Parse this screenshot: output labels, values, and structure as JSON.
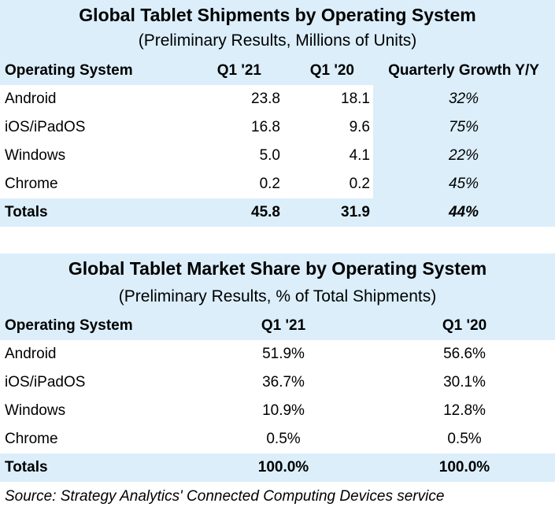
{
  "shipments": {
    "title": "Global Tablet Shipments by Operating System",
    "subtitle": "(Preliminary Results, Millions of Units)",
    "headers": [
      "Operating System",
      "Q1 '21",
      "Q1 '20",
      "Quarterly Growth Y/Y"
    ],
    "rows": [
      [
        "Android",
        "23.8",
        "18.1",
        "32%"
      ],
      [
        "iOS/iPadOS",
        "16.8",
        "9.6",
        "75%"
      ],
      [
        "Windows",
        "5.0",
        "4.1",
        "22%"
      ],
      [
        "Chrome",
        "0.2",
        "0.2",
        "45%"
      ]
    ],
    "totals": [
      "Totals",
      "45.8",
      "31.9",
      "44%"
    ]
  },
  "share": {
    "title": "Global Tablet Market Share by Operating System",
    "subtitle": "(Preliminary Results, % of Total Shipments)",
    "headers": [
      "Operating System",
      "Q1 '21",
      "Q1 '20"
    ],
    "rows": [
      [
        "Android",
        "51.9%",
        "56.6%"
      ],
      [
        "iOS/iPadOS",
        "36.7%",
        "30.1%"
      ],
      [
        "Windows",
        "10.9%",
        "12.8%"
      ],
      [
        "Chrome",
        "0.5%",
        "0.5%"
      ]
    ],
    "totals": [
      "Totals",
      "100.0%",
      "100.0%"
    ]
  },
  "source": "Source: Strategy Analytics' Connected Computing Devices service",
  "colors": {
    "shade": "#dbeefa",
    "white": "#ffffff"
  },
  "chart_data": [
    {
      "type": "table",
      "title": "Global Tablet Shipments by Operating System",
      "subtitle": "(Preliminary Results, Millions of Units)",
      "columns": [
        "Operating System",
        "Q1 '21",
        "Q1 '20",
        "Quarterly Growth Y/Y"
      ],
      "categories": [
        "Android",
        "iOS/iPadOS",
        "Windows",
        "Chrome",
        "Totals"
      ],
      "series": [
        {
          "name": "Q1 '21",
          "values": [
            23.8,
            16.8,
            5.0,
            0.2,
            45.8
          ]
        },
        {
          "name": "Q1 '20",
          "values": [
            18.1,
            9.6,
            4.1,
            0.2,
            31.9
          ]
        },
        {
          "name": "Quarterly Growth Y/Y",
          "values": [
            32,
            75,
            22,
            45,
            44
          ]
        }
      ]
    },
    {
      "type": "table",
      "title": "Global Tablet Market Share by Operating System",
      "subtitle": "(Preliminary Results, % of Total Shipments)",
      "columns": [
        "Operating System",
        "Q1 '21",
        "Q1 '20"
      ],
      "categories": [
        "Android",
        "iOS/iPadOS",
        "Windows",
        "Chrome",
        "Totals"
      ],
      "series": [
        {
          "name": "Q1 '21",
          "values": [
            51.9,
            36.7,
            10.9,
            0.5,
            100.0
          ]
        },
        {
          "name": "Q1 '20",
          "values": [
            56.6,
            30.1,
            12.8,
            0.5,
            100.0
          ]
        }
      ]
    }
  ]
}
